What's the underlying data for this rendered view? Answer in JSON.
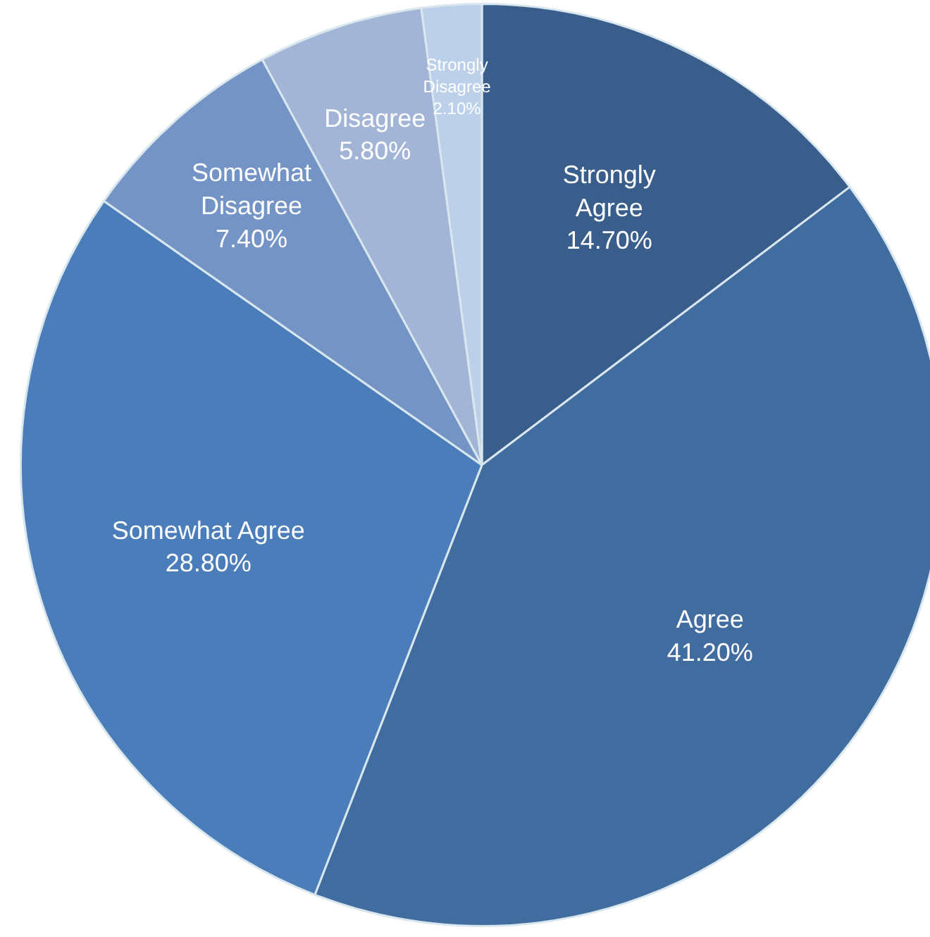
{
  "chart_data": {
    "type": "pie",
    "categories": [
      "Strongly Agree",
      "Agree",
      "Somewhat Agree",
      "Somewhat Disagree",
      "Disagree",
      "Strongly Disagree"
    ],
    "values": [
      14.7,
      41.2,
      28.8,
      7.4,
      5.8,
      2.1
    ],
    "value_labels": [
      "14.70%",
      "41.20%",
      "28.80%",
      "7.40%",
      "5.80%",
      "2.10%"
    ],
    "colors": [
      "#3a5e8c",
      "#416c9f",
      "#4a7dba",
      "#7394c5",
      "#a3b5d6",
      "#bcd0ea"
    ],
    "legend": false
  }
}
